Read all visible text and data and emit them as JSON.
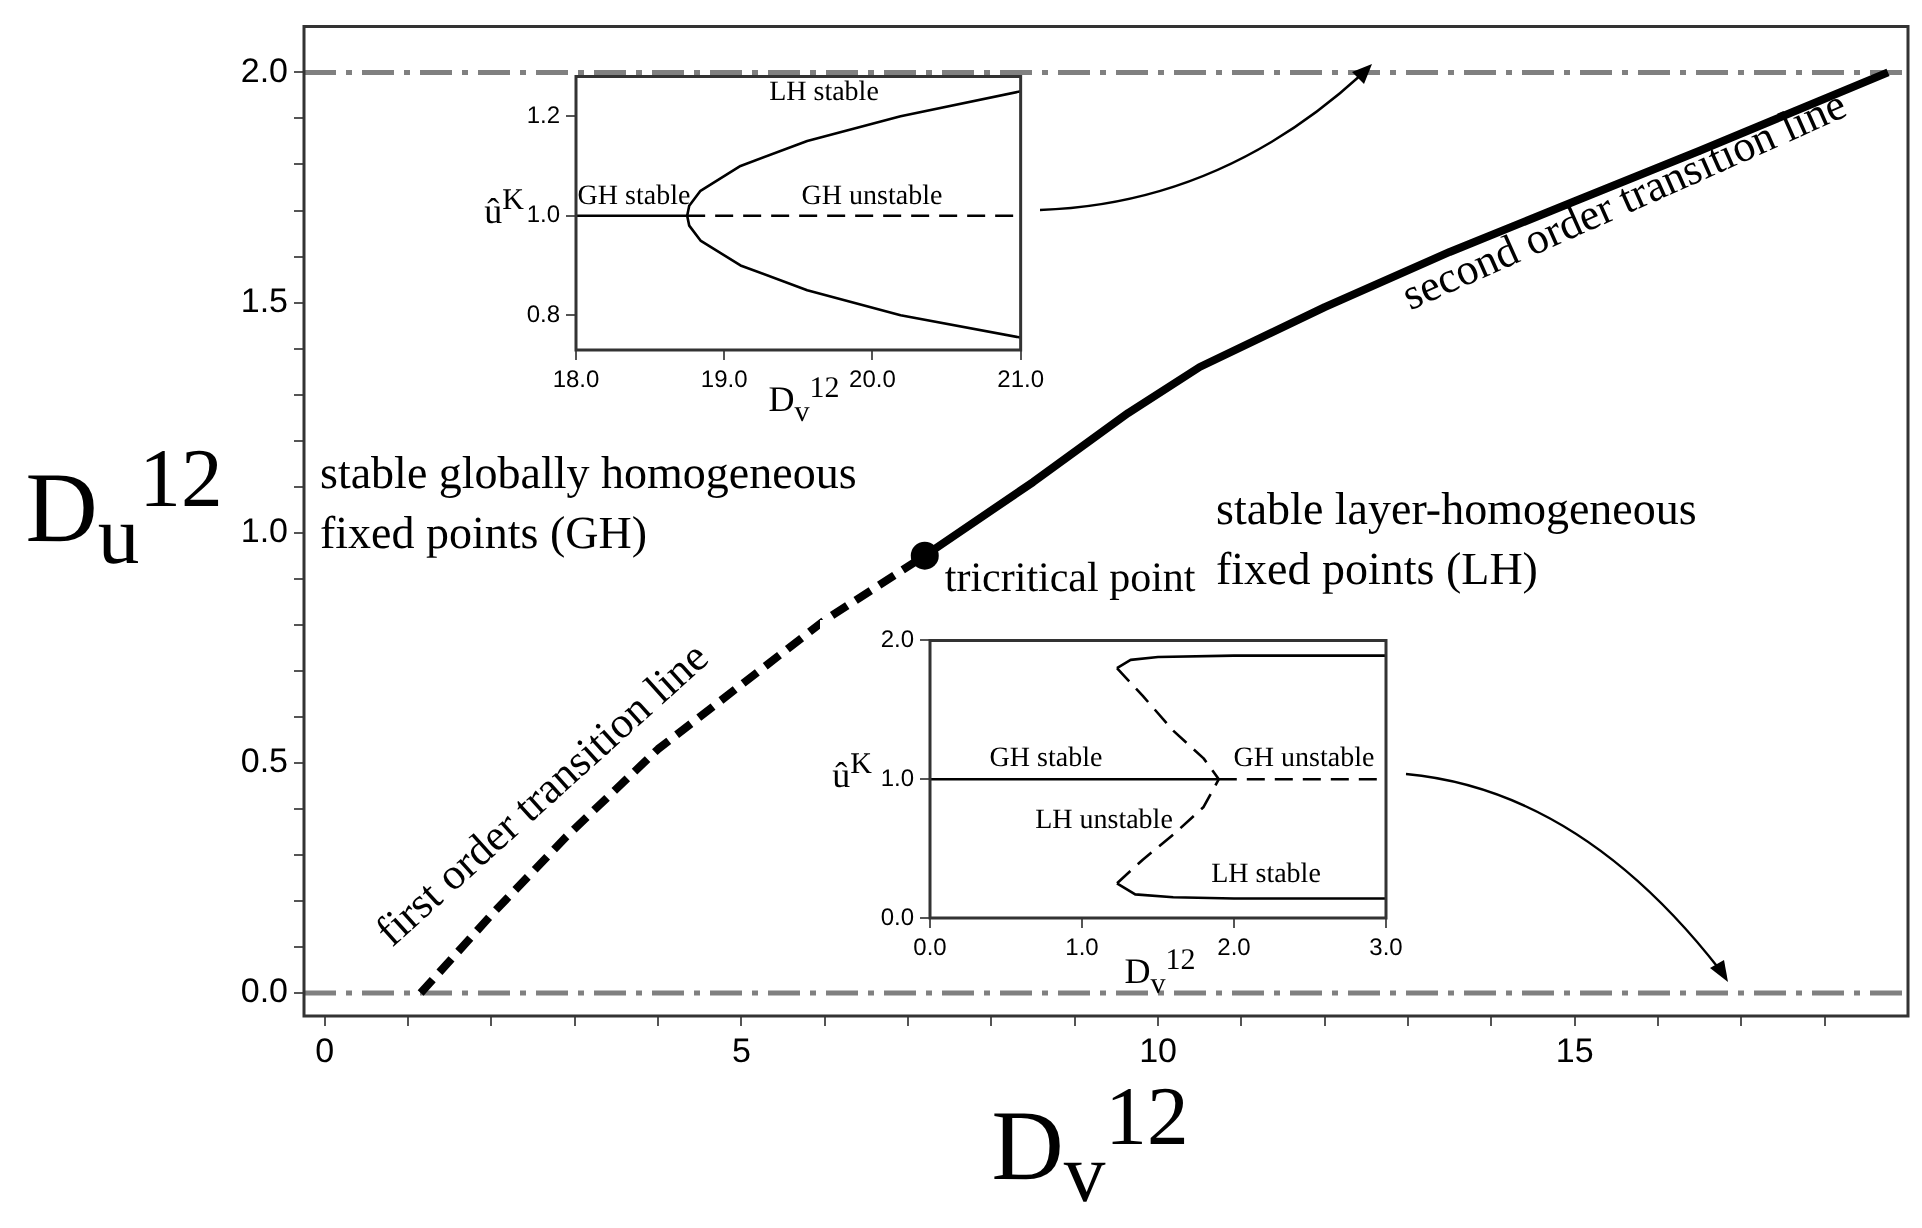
{
  "chart_data": [
    {
      "type": "line",
      "xlabel": "D$_{v}$$^{12}$",
      "ylabel": "D$_{u}$$^{12}$",
      "xlim": [
        -0.25,
        19
      ],
      "ylim": [
        -0.05,
        2.1
      ],
      "xticks": [
        0,
        {
          "value": 1,
          "label": null
        },
        {
          "value": 2,
          "label": null
        },
        {
          "value": 3,
          "label": null
        },
        {
          "value": 4,
          "label": null
        },
        5,
        {
          "value": 6,
          "label": null
        },
        {
          "value": 7,
          "label": null
        },
        {
          "value": 8,
          "label": null
        },
        {
          "value": 9,
          "label": null
        },
        10,
        {
          "value": 11,
          "label": null
        },
        {
          "value": 12,
          "label": null
        },
        {
          "value": 13,
          "label": null
        },
        {
          "value": 14,
          "label": null
        },
        15,
        {
          "value": 16,
          "label": null
        },
        {
          "value": 17,
          "label": null
        },
        {
          "value": 18,
          "label": null
        }
      ],
      "yticks": [
        {
          "value": 0,
          "label": "0.0"
        },
        {
          "value": 0.1,
          "label": null
        },
        {
          "value": 0.2,
          "label": null
        },
        {
          "value": 0.3,
          "label": null
        },
        {
          "value": 0.4,
          "label": null
        },
        {
          "value": 0.5,
          "label": "0.5"
        },
        {
          "value": 0.6,
          "label": null
        },
        {
          "value": 0.7,
          "label": null
        },
        {
          "value": 0.8,
          "label": null
        },
        {
          "value": 0.9,
          "label": null
        },
        {
          "value": 1,
          "label": "1.0"
        },
        {
          "value": 1.1,
          "label": null
        },
        {
          "value": 1.2,
          "label": null
        },
        {
          "value": 1.3,
          "label": null
        },
        {
          "value": 1.4,
          "label": null
        },
        {
          "value": 1.5,
          "label": "1.5"
        },
        {
          "value": 1.6,
          "label": null
        },
        {
          "value": 1.7,
          "label": null
        },
        {
          "value": 1.8,
          "label": null
        },
        {
          "value": 1.9,
          "label": null
        },
        {
          "value": 2,
          "label": "2.0"
        }
      ],
      "grid": false,
      "legend": false,
      "series": [
        {
          "type": "line",
          "line_style": "dashed",
          "color": "#000000",
          "x": [
            1.15,
            2.0,
            2.9,
            4.0,
            5.0,
            6.0,
            7.2
          ],
          "values": [
            0,
            0.17,
            0.34,
            0.53,
            0.67,
            0.81,
            0.95
          ]
        },
        {
          "type": "line",
          "line_style": "solid",
          "color": "#000000",
          "x": [
            7.2,
            8.5,
            9.64,
            10.5,
            12.0,
            13.5,
            15.0,
            16.5,
            18.76
          ],
          "values": [
            0.95,
            1.11,
            1.26,
            1.36,
            1.49,
            1.61,
            1.72,
            1.83,
            2.0
          ]
        },
        {
          "type": "scatter",
          "marker": "circle",
          "color": "#000000",
          "x": [
            7.2
          ],
          "values": [
            0.95
          ]
        }
      ],
      "ref_lines": [
        {
          "axis": "y",
          "value": 2,
          "color": "#808080",
          "line_style": "dashdot"
        },
        {
          "axis": "y",
          "value": 0,
          "color": "#808080",
          "line_style": "dashdot"
        }
      ],
      "annotations": [
        "stable globally homogeneous fixed points (GH)",
        "stable layer-homogeneous fixed points (LH)",
        {
          "text": "tricritical point",
          "x": 7.2,
          "y": 0.95
        },
        "first order transition line",
        "second order transition line"
      ]
    },
    {
      "type": "line",
      "xlabel": "D$_{v}$$^{12}$",
      "ylabel": "û$^{K}$",
      "xlim": [
        18,
        21
      ],
      "ylim": [
        0.73,
        1.28
      ],
      "xticks": [
        {
          "value": 18,
          "label": "18.0"
        },
        {
          "value": 19,
          "label": "19.0"
        },
        {
          "value": 20,
          "label": "20.0"
        },
        {
          "value": 21,
          "label": "21.0"
        }
      ],
      "yticks": [
        {
          "value": 0.8,
          "label": "0.8"
        },
        {
          "value": 1,
          "label": "1.0"
        },
        {
          "value": 1.2,
          "label": "1.2"
        }
      ],
      "grid": false,
      "legend": false,
      "series": [
        {
          "type": "line",
          "line_style": "solid",
          "color": "#000000",
          "x": [
            18,
            18.75
          ],
          "values": [
            1,
            1
          ]
        },
        {
          "type": "line",
          "line_style": "dashed",
          "color": "#000000",
          "x": [
            18.75,
            21
          ],
          "values": [
            1,
            1
          ]
        },
        {
          "type": "line",
          "line_style": "solid",
          "color": "#000000",
          "x": [
            21,
            20.19,
            19.56,
            19.11,
            18.84,
            18.764,
            18.75,
            18.764,
            18.84,
            19.11,
            19.56,
            20.19,
            21
          ],
          "values": [
            0.755,
            0.8,
            0.85,
            0.9,
            0.95,
            0.98,
            1.0,
            1.02,
            1.05,
            1.1,
            1.15,
            1.2,
            1.25
          ]
        }
      ],
      "annotations": [
        "LH stable",
        "GH stable",
        "GH unstable"
      ]
    },
    {
      "type": "line",
      "xlabel": "D$_{v}$$^{12}$",
      "ylabel": "û$^{K}$",
      "xlim": [
        0,
        3
      ],
      "ylim": [
        0,
        2
      ],
      "xticks": [
        {
          "value": 0,
          "label": "0.0"
        },
        {
          "value": 1,
          "label": "1.0"
        },
        {
          "value": 2,
          "label": "2.0"
        },
        {
          "value": 3,
          "label": "3.0"
        }
      ],
      "yticks": [
        {
          "value": 0,
          "label": "0.0"
        },
        {
          "value": 1,
          "label": "1.0"
        },
        {
          "value": 2,
          "label": "2.0"
        }
      ],
      "grid": false,
      "legend": false,
      "series": [
        {
          "type": "line",
          "line_style": "solid",
          "color": "#000000",
          "x": [
            0,
            1.9
          ],
          "values": [
            1,
            1
          ]
        },
        {
          "type": "line",
          "line_style": "dashed",
          "color": "#000000",
          "x": [
            1.9,
            3
          ],
          "values": [
            1,
            1
          ]
        },
        {
          "type": "line",
          "line_style": "solid",
          "color": "#000000",
          "x": [
            3,
            2.0,
            1.5,
            1.32,
            1.23
          ],
          "values": [
            1.89,
            1.89,
            1.88,
            1.86,
            1.8
          ]
        },
        {
          "type": "line",
          "line_style": "dashed",
          "color": "#000000",
          "x": [
            1.23,
            1.4,
            1.6,
            1.8,
            1.9,
            1.8,
            1.6,
            1.4,
            1.23
          ],
          "values": [
            1.8,
            1.6,
            1.35,
            1.15,
            1.0,
            0.8,
            0.6,
            0.42,
            0.25
          ]
        },
        {
          "type": "line",
          "line_style": "solid",
          "color": "#000000",
          "x": [
            1.23,
            1.35,
            1.6,
            2.0,
            3.0
          ],
          "values": [
            0.25,
            0.17,
            0.15,
            0.14,
            0.14
          ]
        }
      ],
      "annotations": [
        "GH stable",
        "GH unstable",
        "LH unstable",
        "LH stable"
      ]
    }
  ]
}
